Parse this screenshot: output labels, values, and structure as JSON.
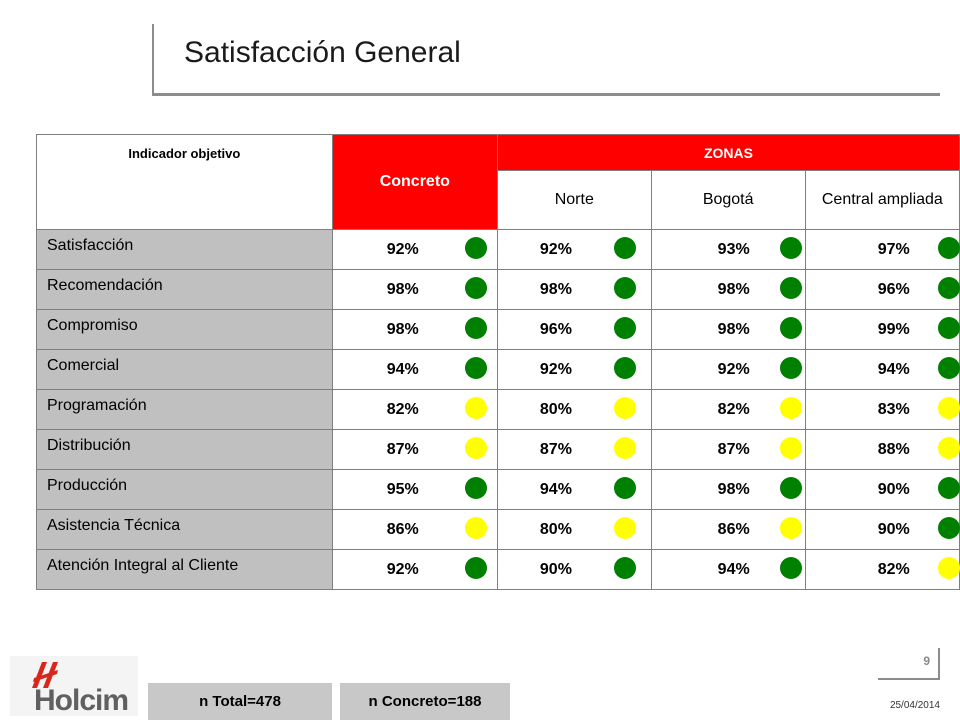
{
  "title": "Satisfacción General",
  "table": {
    "indicator_header": "Indicador objetivo",
    "concreto_header": "Concreto",
    "zonas_header": "ZONAS",
    "zones": [
      "Norte",
      "Bogotá",
      "Central ampliada"
    ],
    "rows": [
      {
        "label": "Satisfacción",
        "values": [
          {
            "v": "92%",
            "s": "green"
          },
          {
            "v": "92%",
            "s": "green"
          },
          {
            "v": "93%",
            "s": "green"
          },
          {
            "v": "97%",
            "s": "green"
          }
        ]
      },
      {
        "label": "Recomendación",
        "values": [
          {
            "v": "98%",
            "s": "green"
          },
          {
            "v": "98%",
            "s": "green"
          },
          {
            "v": "98%",
            "s": "green"
          },
          {
            "v": "96%",
            "s": "green"
          }
        ]
      },
      {
        "label": "Compromiso",
        "values": [
          {
            "v": "98%",
            "s": "green"
          },
          {
            "v": "96%",
            "s": "green"
          },
          {
            "v": "98%",
            "s": "green"
          },
          {
            "v": "99%",
            "s": "green"
          }
        ]
      },
      {
        "label": "Comercial",
        "values": [
          {
            "v": "94%",
            "s": "green"
          },
          {
            "v": "92%",
            "s": "green"
          },
          {
            "v": "92%",
            "s": "green"
          },
          {
            "v": "94%",
            "s": "green"
          }
        ]
      },
      {
        "label": "Programación",
        "values": [
          {
            "v": "82%",
            "s": "yellow"
          },
          {
            "v": "80%",
            "s": "yellow"
          },
          {
            "v": "82%",
            "s": "yellow"
          },
          {
            "v": "83%",
            "s": "yellow"
          }
        ]
      },
      {
        "label": "Distribución",
        "values": [
          {
            "v": "87%",
            "s": "yellow"
          },
          {
            "v": "87%",
            "s": "yellow"
          },
          {
            "v": "87%",
            "s": "yellow"
          },
          {
            "v": "88%",
            "s": "yellow"
          }
        ]
      },
      {
        "label": "Producción",
        "values": [
          {
            "v": "95%",
            "s": "green"
          },
          {
            "v": "94%",
            "s": "green"
          },
          {
            "v": "98%",
            "s": "green"
          },
          {
            "v": "90%",
            "s": "green"
          }
        ]
      },
      {
        "label": "Asistencia Técnica",
        "values": [
          {
            "v": "86%",
            "s": "yellow"
          },
          {
            "v": "80%",
            "s": "yellow"
          },
          {
            "v": "86%",
            "s": "yellow"
          },
          {
            "v": "90%",
            "s": "green"
          }
        ]
      },
      {
        "label": "Atención Integral al Cliente",
        "values": [
          {
            "v": "92%",
            "s": "green"
          },
          {
            "v": "90%",
            "s": "green"
          },
          {
            "v": "94%",
            "s": "green"
          },
          {
            "v": "82%",
            "s": "yellow"
          }
        ]
      }
    ]
  },
  "status_colors": {
    "green": "#008000",
    "yellow": "#ffff00",
    "header_red": "#ff0000"
  },
  "footer": {
    "logo_text": "Holcim",
    "n_total": "n Total=478",
    "n_concreto": "n Concreto=188",
    "page_number": "9",
    "date": "25/04/2014"
  }
}
